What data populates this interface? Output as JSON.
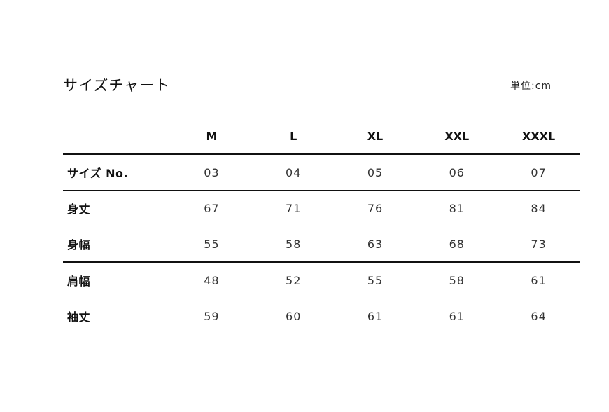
{
  "title": "サイズチャート",
  "unit": "単位:cm",
  "table": {
    "columns": [
      "",
      "M",
      "L",
      "XL",
      "XXL",
      "XXXL"
    ],
    "rows": [
      {
        "label": "サイズ No.",
        "values": [
          "03",
          "04",
          "05",
          "06",
          "07"
        ]
      },
      {
        "label": "身丈",
        "values": [
          "67",
          "71",
          "76",
          "81",
          "84"
        ]
      },
      {
        "label": "身幅",
        "values": [
          "55",
          "58",
          "63",
          "68",
          "73"
        ]
      },
      {
        "label": "肩幅",
        "values": [
          "48",
          "52",
          "55",
          "58",
          "61"
        ]
      },
      {
        "label": "袖丈",
        "values": [
          "59",
          "60",
          "61",
          "61",
          "64"
        ]
      }
    ]
  }
}
